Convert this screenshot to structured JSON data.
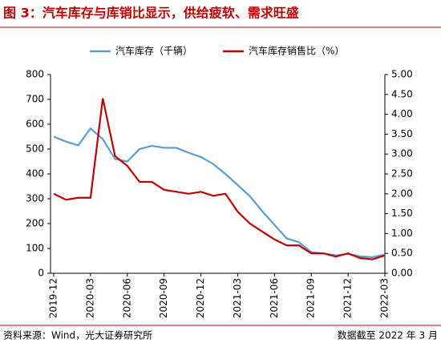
{
  "chart_data": {
    "type": "line",
    "title": "图 3：汽车库存与库销比显示，供给疲软、需求旺盛",
    "source": "资料来源：Wind，光大证券研究所",
    "note": "数据截至 2022 年 3 月",
    "categories": [
      "2019-12",
      null,
      null,
      "2020-03",
      null,
      null,
      "2020-06",
      null,
      null,
      "2020-09",
      null,
      null,
      "2020-12",
      null,
      null,
      "2021-03",
      null,
      null,
      "2021-06",
      null,
      null,
      "2021-09",
      null,
      null,
      "2021-12",
      null,
      null,
      "2022-03"
    ],
    "series": [
      {
        "name": "汽车库存（千辆）",
        "color": "#5b9bd5",
        "values": [
          550,
          530,
          515,
          583,
          540,
          460,
          450,
          500,
          513,
          505,
          505,
          485,
          468,
          440,
          400,
          355,
          310,
          250,
          195,
          140,
          125,
          85,
          80,
          72,
          78,
          68,
          65,
          75
        ]
      },
      {
        "name": "汽车库存销售比（%）",
        "color": "#c00000",
        "axis": "y2",
        "values": [
          2.0,
          1.85,
          1.9,
          1.9,
          4.4,
          2.95,
          2.7,
          2.3,
          2.3,
          2.1,
          2.05,
          2.0,
          2.05,
          1.95,
          2.0,
          1.55,
          1.25,
          1.05,
          0.85,
          0.7,
          0.7,
          0.5,
          0.5,
          0.42,
          0.5,
          0.38,
          0.35,
          0.45
        ]
      }
    ],
    "ylim": [
      0,
      800
    ],
    "yticks": [
      0,
      100,
      200,
      300,
      400,
      500,
      600,
      700,
      800
    ],
    "y2lim": [
      0,
      5
    ],
    "y2ticks": [
      {
        "value": 0,
        "label": "0.00"
      },
      {
        "value": 0.5,
        "label": "0.50"
      },
      {
        "value": 1,
        "label": "1.00"
      },
      {
        "value": 1.5,
        "label": "1.50"
      },
      {
        "value": 2,
        "label": "2.00"
      },
      {
        "value": 2.5,
        "label": "2.50"
      },
      {
        "value": 3,
        "label": "3.00"
      },
      {
        "value": 3.5,
        "label": "3.50"
      },
      {
        "value": 4,
        "label": "4.00"
      },
      {
        "value": 4.5,
        "label": "4.50"
      },
      {
        "value": 5,
        "label": "5.00"
      }
    ]
  }
}
